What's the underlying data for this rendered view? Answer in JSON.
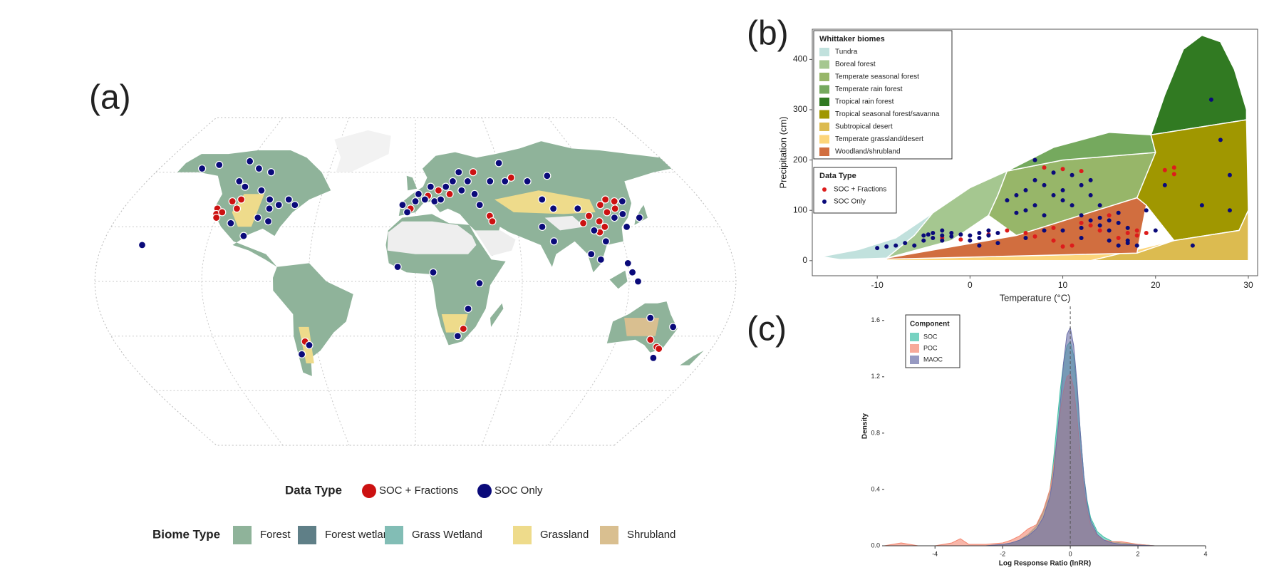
{
  "chart_data": [
    {
      "type": "map",
      "label": "(a)",
      "legend_title": "Data Type",
      "series": [
        {
          "name": "SOC + Fractions",
          "color": "#cc1111",
          "lon": [
            -122,
            -121,
            -120,
            -118,
            -115,
            -110,
            -110,
            115,
            120,
            125,
            123,
            117,
            105,
            110,
            112,
            108,
            100,
            8,
            15,
            22,
            -3,
            40,
            65,
            45,
            46,
            28,
            140,
            146,
            148,
            -66
          ],
          "lat": [
            40,
            37,
            35,
            38,
            44,
            45,
            40,
            42,
            45,
            44,
            40,
            38,
            36,
            33,
            30,
            27,
            32,
            47,
            50,
            48,
            40,
            60,
            57,
            36,
            33,
            -26,
            -32,
            -36,
            -37,
            -33
          ]
        },
        {
          "name": "SOC Only",
          "color": "#0a0a7a",
          "lon": [
            -150,
            -140,
            -120,
            -110,
            -100,
            -118,
            -112,
            -100,
            -92,
            -85,
            -80,
            -75,
            -95,
            -88,
            -110,
            -100,
            -90,
            -157,
            -8,
            -5,
            0,
            2,
            6,
            10,
            12,
            16,
            20,
            25,
            30,
            35,
            38,
            40,
            50,
            60,
            75,
            90,
            30,
            60,
            80,
            85,
            100,
            105,
            110,
            120,
            126,
            130,
            135,
            125,
            75,
            80,
            100,
            105,
            120,
            122,
            125,
            -10,
            10,
            36,
            30,
            25,
            150,
            135,
            148,
            -64,
            -70
          ],
          "lat": [
            62,
            64,
            66,
            62,
            60,
            55,
            52,
            50,
            45,
            42,
            45,
            42,
            35,
            33,
            32,
            25,
            40,
            20,
            42,
            38,
            44,
            48,
            45,
            52,
            44,
            45,
            52,
            55,
            50,
            55,
            48,
            42,
            55,
            55,
            55,
            58,
            60,
            65,
            45,
            40,
            40,
            28,
            22,
            35,
            37,
            44,
            35,
            30,
            30,
            22,
            15,
            12,
            10,
            5,
            0,
            8,
            5,
            -1,
            -15,
            -30,
            -25,
            -20,
            -42,
            -35,
            -40
          ]
        }
      ],
      "biome_legend": {
        "title": "Biome Type",
        "items": [
          {
            "name": "Forest",
            "color": "#8fb39a"
          },
          {
            "name": "Forest wetland",
            "color": "#5f7f87"
          },
          {
            "name": "Grass Wetland",
            "color": "#82bdb5"
          },
          {
            "name": "Grassland",
            "color": "#eedb8b"
          },
          {
            "name": "Shrubland",
            "color": "#d9bf90"
          }
        ]
      }
    },
    {
      "type": "scatter",
      "label": "(b)",
      "x_label": "Temperature (°C)",
      "y_label": "Precipitation (cm)",
      "xlim": [
        -17,
        31
      ],
      "ylim": [
        -30,
        460
      ],
      "xticks": [
        -10,
        0,
        10,
        20,
        30
      ],
      "yticks": [
        0,
        100,
        200,
        300,
        400
      ],
      "legend_title": "Whittaker biomes",
      "biomes": [
        {
          "name": "Tundra",
          "color": "#c1e1dd",
          "x": [
            -16,
            -12,
            -8,
            -4,
            -6,
            -9,
            -14
          ],
          "values": [
            8,
            22,
            45,
            95,
            50,
            5,
            2
          ]
        },
        {
          "name": "Boreal forest",
          "color": "#a5c790",
          "x": [
            -4,
            0,
            3,
            4,
            3,
            2,
            -2,
            -9,
            -6
          ],
          "values": [
            95,
            145,
            170,
            178,
            130,
            90,
            40,
            5,
            50
          ]
        },
        {
          "name": "Temperate seasonal forest",
          "color": "#97b669",
          "x": [
            3,
            4,
            10,
            20,
            19,
            18,
            5,
            2,
            3
          ],
          "values": [
            130,
            178,
            200,
            215,
            125,
            125,
            50,
            90,
            130
          ]
        },
        {
          "name": "Temperate rain forest",
          "color": "#75a95e",
          "x": [
            4,
            9,
            15,
            19.5,
            20,
            10
          ],
          "values": [
            178,
            225,
            255,
            250,
            215,
            200
          ]
        },
        {
          "name": "Tropical rain forest",
          "color": "#317a22",
          "x": [
            19.5,
            21,
            23,
            25,
            27,
            28.5,
            29.8,
            29.8
          ],
          "values": [
            250,
            330,
            420,
            448,
            435,
            380,
            300,
            280
          ]
        },
        {
          "name": "Tropical seasonal forest/savanna",
          "color": "#a09700",
          "x": [
            19.5,
            29.8,
            30,
            29,
            22,
            19,
            18,
            20
          ],
          "values": [
            250,
            280,
            100,
            60,
            40,
            110,
            125,
            215
          ]
        },
        {
          "name": "Subtropical desert",
          "color": "#dcbb50",
          "x": [
            13,
            22,
            29,
            30,
            30
          ],
          "values": [
            0,
            40,
            60,
            100,
            0
          ]
        },
        {
          "name": "Temperate grassland/desert",
          "color": "#fcd57a",
          "x": [
            -9,
            18,
            22,
            13,
            -9
          ],
          "values": [
            3,
            15,
            40,
            0,
            0
          ]
        },
        {
          "name": "Woodland/shrubland",
          "color": "#d16e3f",
          "x": [
            -9,
            5,
            18,
            19,
            18,
            -9
          ],
          "values": [
            5,
            50,
            125,
            110,
            15,
            3
          ]
        }
      ],
      "series_legend_title": "Data Type",
      "series": [
        {
          "name": "SOC + Fractions",
          "color": "#dd1c1c",
          "x": [
            8,
            10,
            12,
            21,
            22,
            22,
            4,
            6,
            7,
            9,
            10,
            11,
            12,
            13,
            14,
            15,
            16,
            17,
            18,
            18,
            19,
            -1,
            -3,
            2,
            9
          ],
          "values": [
            185,
            182,
            178,
            180,
            185,
            172,
            60,
            55,
            48,
            40,
            28,
            30,
            75,
            70,
            60,
            90,
            45,
            55,
            50,
            60,
            55,
            42,
            45,
            52,
            65
          ]
        },
        {
          "name": "SOC Only",
          "color": "#0a0a7a",
          "x": [
            -10,
            -9,
            -8,
            -7,
            -6,
            -5,
            -5,
            -4.5,
            -4,
            -4,
            -3,
            -3,
            -2,
            -2,
            -1,
            0,
            0,
            1,
            1,
            2,
            2,
            3,
            4,
            5,
            5,
            6,
            6,
            7,
            7,
            8,
            8,
            9,
            9,
            10,
            10,
            10,
            11,
            11,
            12,
            12,
            13,
            13,
            14,
            14,
            15,
            15,
            15,
            16,
            16,
            16,
            17,
            17,
            18,
            19,
            20,
            21,
            24,
            25,
            26,
            27,
            28,
            28,
            -3,
            1,
            3,
            6,
            8,
            12,
            12,
            13,
            14,
            17,
            7
          ],
          "values": [
            25,
            28,
            30,
            35,
            30,
            50,
            40,
            52,
            55,
            45,
            50,
            40,
            55,
            48,
            52,
            50,
            40,
            55,
            45,
            60,
            50,
            55,
            120,
            130,
            95,
            100,
            140,
            110,
            160,
            150,
            90,
            130,
            175,
            140,
            120,
            60,
            170,
            110,
            150,
            90,
            160,
            130,
            110,
            70,
            80,
            60,
            40,
            95,
            75,
            30,
            35,
            40,
            30,
            100,
            60,
            150,
            30,
            110,
            320,
            240,
            170,
            100,
            60,
            30,
            35,
            45,
            60,
            65,
            45,
            80,
            85,
            65,
            200
          ]
        }
      ]
    },
    {
      "type": "density",
      "label": "(c)",
      "x_label": "Log Response Ratio (lnRR)",
      "y_label": "Density",
      "xlim": [
        -5.5,
        4
      ],
      "ylim": [
        0,
        1.7
      ],
      "xticks": [
        -4,
        -2,
        0,
        2,
        4
      ],
      "yticks": [
        {
          "value": 0,
          "label": "0.0"
        },
        {
          "value": 0.4,
          "label": "0.4"
        },
        {
          "value": 0.8,
          "label": "0.8"
        },
        {
          "value": 1.2,
          "label": "1.2"
        },
        {
          "value": 1.6,
          "label": "1.6"
        }
      ],
      "vline": 0,
      "legend_title": "Component",
      "x": [
        -5.5,
        -5,
        -4.5,
        -4,
        -3.5,
        -3.25,
        -3,
        -2.5,
        -2,
        -1.75,
        -1.5,
        -1.25,
        -1,
        -0.8,
        -0.6,
        -0.5,
        -0.4,
        -0.3,
        -0.2,
        -0.1,
        0,
        0.1,
        0.2,
        0.3,
        0.4,
        0.5,
        0.6,
        0.8,
        1,
        1.25,
        1.5,
        2,
        2.5,
        3,
        3.5,
        4
      ],
      "series": [
        {
          "name": "SOC",
          "color": "#3dbfa6",
          "values": [
            0,
            0,
            0,
            0,
            0,
            0,
            0,
            0,
            0.01,
            0.02,
            0.04,
            0.08,
            0.14,
            0.24,
            0.4,
            0.6,
            0.85,
            1.1,
            1.3,
            1.42,
            1.45,
            1.35,
            1.1,
            0.8,
            0.5,
            0.32,
            0.2,
            0.1,
            0.06,
            0.03,
            0.02,
            0.01,
            0,
            0,
            0,
            0
          ]
        },
        {
          "name": "POC",
          "color": "#f4866f",
          "values": [
            0,
            0.02,
            0,
            0,
            0.02,
            0.05,
            0.01,
            0.01,
            0.02,
            0.04,
            0.07,
            0.12,
            0.15,
            0.25,
            0.4,
            0.55,
            0.75,
            0.95,
            1.1,
            1.2,
            1.22,
            1.12,
            0.9,
            0.65,
            0.4,
            0.25,
            0.15,
            0.07,
            0.04,
            0.03,
            0.03,
            0.01,
            0,
            0,
            0,
            0
          ]
        },
        {
          "name": "MAOC",
          "color": "#6b6fa8",
          "values": [
            0,
            0,
            0,
            0,
            0,
            0,
            0,
            0,
            0.01,
            0.02,
            0.04,
            0.07,
            0.12,
            0.2,
            0.35,
            0.5,
            0.75,
            1.0,
            1.3,
            1.5,
            1.55,
            1.42,
            1.15,
            0.8,
            0.5,
            0.3,
            0.18,
            0.08,
            0.04,
            0.02,
            0.01,
            0.005,
            0,
            0,
            0,
            0
          ]
        }
      ]
    }
  ]
}
